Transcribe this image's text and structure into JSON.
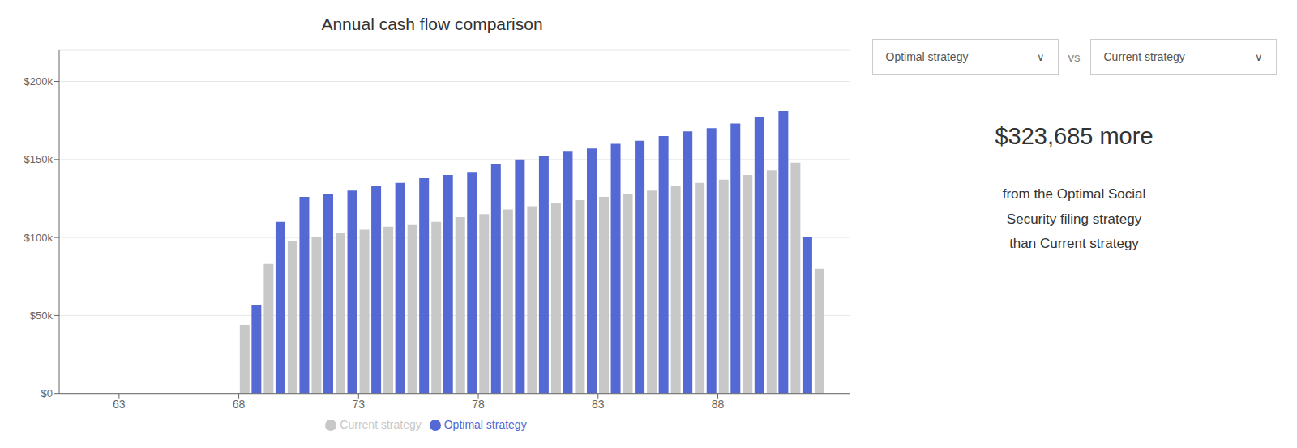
{
  "chart_data": {
    "type": "bar",
    "title": "Annual cash flow comparison",
    "x": [
      62,
      63,
      64,
      65,
      66,
      67,
      68,
      69,
      70,
      71,
      72,
      73,
      74,
      75,
      76,
      77,
      78,
      79,
      80,
      81,
      82,
      83,
      84,
      85,
      86,
      87,
      88,
      89,
      90,
      91,
      92
    ],
    "series": [
      {
        "name": "Optimal strategy",
        "color": "#5469d4",
        "values": [
          0,
          0,
          0,
          0,
          0,
          0,
          0,
          57000,
          110000,
          126000,
          128000,
          130000,
          133000,
          135000,
          138000,
          140000,
          142000,
          147000,
          150000,
          152000,
          155000,
          157000,
          160000,
          162000,
          165000,
          168000,
          170000,
          173000,
          177000,
          181000,
          100000
        ]
      },
      {
        "name": "Current strategy",
        "color": "#c8c8c8",
        "values": [
          0,
          0,
          0,
          0,
          0,
          0,
          44000,
          83000,
          98000,
          100000,
          103000,
          105000,
          107000,
          108000,
          110000,
          113000,
          115000,
          118000,
          120000,
          122000,
          124000,
          126000,
          128000,
          130000,
          133000,
          135000,
          137000,
          140000,
          143000,
          148000,
          80000
        ]
      }
    ],
    "xlim": [
      60.5,
      93.5
    ],
    "xticks": [
      63,
      68,
      73,
      78,
      83,
      88
    ],
    "ylim": [
      0,
      220000
    ],
    "yticks": [
      {
        "value": 0,
        "label": "$0"
      },
      {
        "value": 50000,
        "label": "$50k"
      },
      {
        "value": 100000,
        "label": "$100k"
      },
      {
        "value": 150000,
        "label": "$150k"
      },
      {
        "value": 200000,
        "label": "$200k"
      }
    ],
    "grid": true,
    "legend": "bottom",
    "annotations": [
      "$323,685 more",
      "from the Optimal Social\nSecurity filing strategy\nthan Current strategy",
      "vs",
      "∨"
    ]
  }
}
